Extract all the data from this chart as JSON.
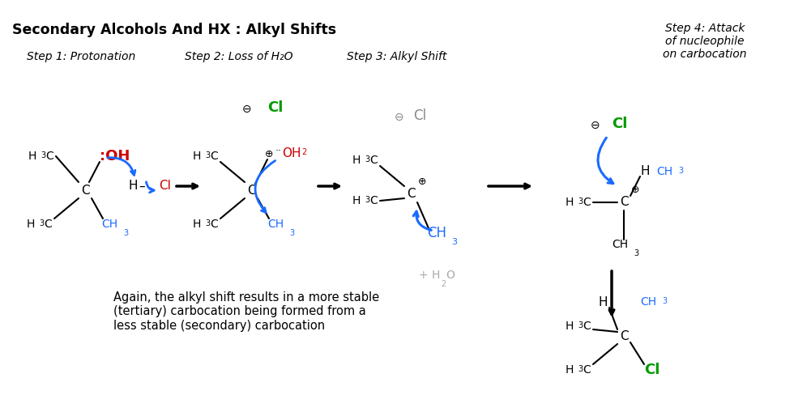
{
  "title": "Secondary Alcohols And HX : Alkyl Shifts",
  "bg_color": "#ffffff",
  "step1_label": "Step 1: Protonation",
  "step2_label": "Step 2: Loss of H₂O",
  "step3_label": "Step 3: Alkyl Shift",
  "step4_label": "Step 4: Attack\nof nucleophile\non carbocation",
  "footnote": "Again, the alkyl shift results in a more stable\n(tertiary) carbocation being formed from a\nless stable (secondary) carbocation",
  "black": "#000000",
  "blue": "#1a6aff",
  "red": "#cc0000",
  "green": "#009900",
  "gray": "#aaaaaa",
  "dark_gray": "#888888"
}
